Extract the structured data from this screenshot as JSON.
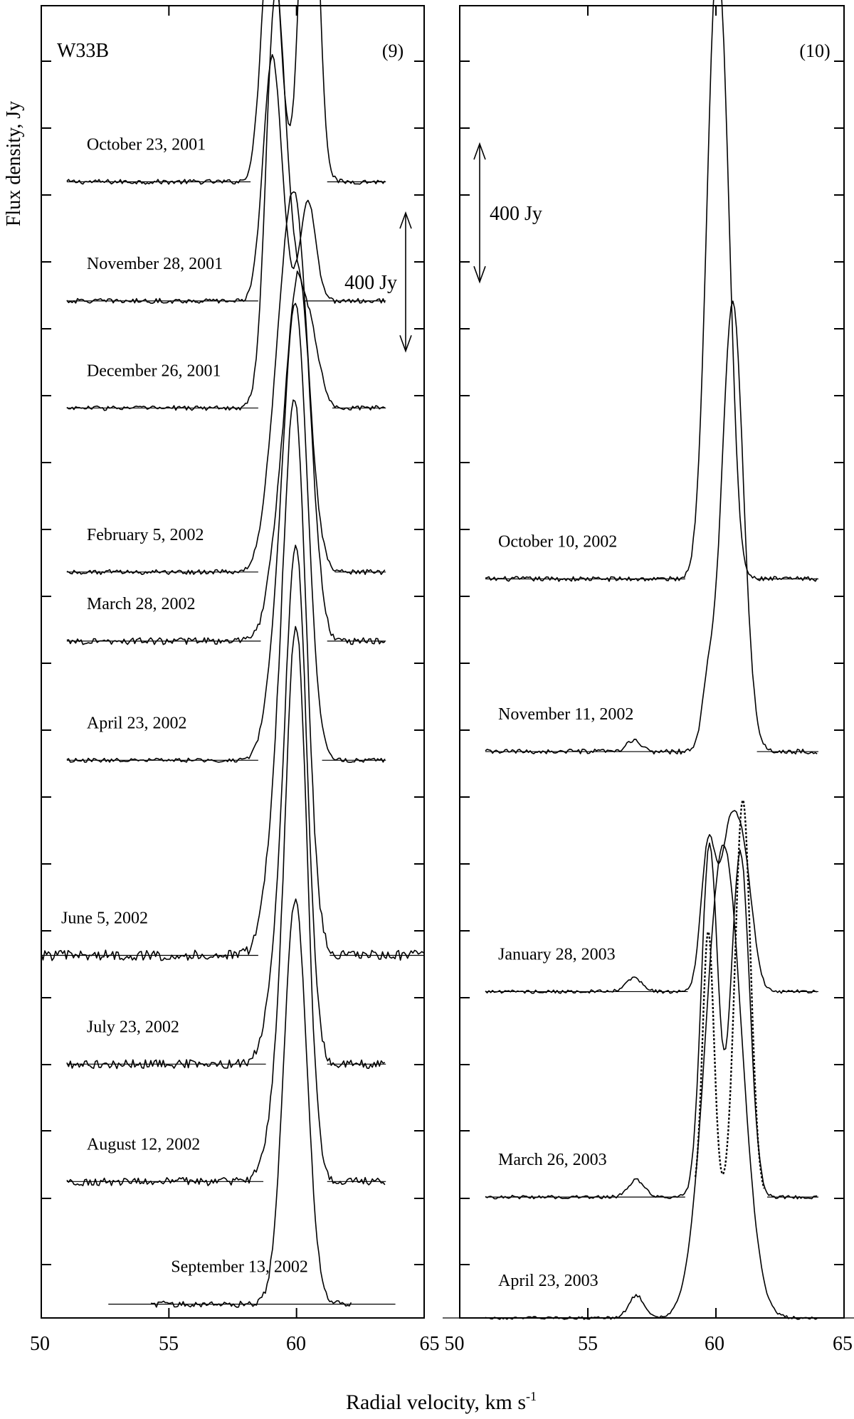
{
  "chart_data": {
    "type": "line",
    "source_name": "W33B",
    "ylabel": "Flux density, Jy",
    "xlabel": "Radial velocity, km s",
    "xlabel_sup": "-1",
    "xlim": [
      50,
      65
    ],
    "xticks": [
      50,
      55,
      60,
      65
    ],
    "x_tick_labels": [
      "50",
      "55",
      "60",
      "65"
    ],
    "x_tick_labels_shared": "65 50",
    "scale_bar_label": "400 Jy",
    "scale_bar_jy": 400,
    "panels": [
      {
        "label": "(9)",
        "flux_range_jy": [
          0,
          3800
        ],
        "scale_bar_y_jy": [
          2800,
          3200
        ],
        "spectra": [
          {
            "date": "October 23, 2001",
            "baseline_jy": 3290,
            "vel_range": [
              51,
              63.5
            ],
            "gap": [
              58.2,
              61.2
            ],
            "noise_jy": 7,
            "peaks": [
              {
                "v": 59.0,
                "a": 790,
                "w": 0.35
              },
              {
                "v": 60.5,
                "a": 1330,
                "w": 0.32
              }
            ]
          },
          {
            "date": "November 28, 2001",
            "baseline_jy": 2945,
            "vel_range": [
              51,
              63.5
            ],
            "gap": [
              58.5,
              60.3
            ],
            "noise_jy": 7,
            "peaks": [
              {
                "v": 59.05,
                "a": 710,
                "w": 0.36
              },
              {
                "v": 60.45,
                "a": 290,
                "w": 0.3
              }
            ]
          },
          {
            "date": "December 26, 2001",
            "baseline_jy": 2635,
            "vel_range": [
              51,
              63.5
            ],
            "gap": [
              58.5,
              61.4
            ],
            "noise_jy": 7,
            "peaks": [
              {
                "v": 59.15,
                "a": 1020,
                "w": 0.36
              },
              {
                "v": 59.8,
                "a": 380,
                "w": 0.55
              },
              {
                "v": 60.6,
                "a": 120,
                "w": 0.35
              }
            ]
          },
          {
            "date": "February 5, 2002",
            "baseline_jy": 2160,
            "vel_range": [
              51,
              63.5
            ],
            "gap": [
              58.5,
              61.5
            ],
            "noise_jy": 7,
            "peaks": [
              {
                "v": 59.2,
                "a": 300,
                "w": 0.45
              },
              {
                "v": 59.95,
                "a": 1020,
                "w": 0.5
              }
            ]
          },
          {
            "date": "March 28, 2002",
            "baseline_jy": 1960,
            "vel_range": [
              51,
              63.5
            ],
            "gap": [
              58.6,
              61.2
            ],
            "noise_jy": 10,
            "peaks": [
              {
                "v": 59.4,
                "a": 320,
                "w": 0.45
              },
              {
                "v": 60.15,
                "a": 980,
                "w": 0.45
              }
            ]
          },
          {
            "date": "April 23, 2002",
            "baseline_jy": 1615,
            "vel_range": [
              51,
              63.5
            ],
            "gap": [
              58.5,
              61.0
            ],
            "noise_jy": 6,
            "peaks": [
              {
                "v": 59.3,
                "a": 300,
                "w": 0.45
              },
              {
                "v": 60.0,
                "a": 1230,
                "w": 0.45
              }
            ]
          },
          {
            "date": "June 5, 2002",
            "baseline_jy": 1050,
            "vel_range": [
              50,
              65
            ],
            "gap": [
              58.5,
              61.3
            ],
            "noise_jy": 15,
            "peaks": [
              {
                "v": 59.2,
                "a": 300,
                "w": 0.45
              },
              {
                "v": 59.95,
                "a": 1530,
                "w": 0.45
              }
            ]
          },
          {
            "date": "July 23, 2002",
            "baseline_jy": 735,
            "vel_range": [
              51,
              63.5
            ],
            "gap": [
              58.8,
              61.2
            ],
            "noise_jy": 13,
            "peaks": [
              {
                "v": 59.3,
                "a": 250,
                "w": 0.45
              },
              {
                "v": 60.0,
                "a": 1430,
                "w": 0.42
              }
            ]
          },
          {
            "date": "August 12, 2002",
            "baseline_jy": 395,
            "vel_range": [
              51,
              63.5
            ],
            "gap": [
              58.7,
              61.2
            ],
            "noise_jy": 12,
            "peaks": [
              {
                "v": 59.3,
                "a": 200,
                "w": 0.45
              },
              {
                "v": 60.0,
                "a": 1550,
                "w": 0.42
              }
            ]
          },
          {
            "date": "September 13, 2002",
            "baseline_jy": 40,
            "vel_range": [
              54.3,
              62.2
            ],
            "gap": null,
            "noise_jy": 9,
            "peaks": [
              {
                "v": 59.95,
                "a": 1170,
                "w": 0.45
              }
            ]
          }
        ]
      },
      {
        "label": "(10)",
        "flux_range_jy": [
          0,
          3800
        ],
        "scale_bar_y_jy": [
          3000,
          3400
        ],
        "spectra": [
          {
            "date": "October 10, 2002",
            "baseline_jy": 2140,
            "vel_range": [
              51,
              64
            ],
            "gap": [
              58.8,
              61.6
            ],
            "noise_jy": 7,
            "peaks": [
              {
                "v": 60.0,
                "a": 1650,
                "w": 0.38
              },
              {
                "v": 60.45,
                "a": 400,
                "w": 0.3
              }
            ]
          },
          {
            "date": "November 11, 2002",
            "baseline_jy": 1640,
            "vel_range": [
              51,
              64
            ],
            "gap": [
              58.8,
              61.6
            ],
            "noise_jy": 7,
            "peaks": [
              {
                "v": 59.7,
                "a": 175,
                "w": 0.25
              },
              {
                "v": 60.65,
                "a": 1300,
                "w": 0.42
              },
              {
                "v": 56.8,
                "a": 35,
                "w": 0.25
              }
            ]
          },
          {
            "date": "January 28, 2003",
            "baseline_jy": 945,
            "vel_range": [
              51,
              64
            ],
            "gap": [
              58.9,
              62.6
            ],
            "noise_jy": 5,
            "peaks": [
              {
                "v": 59.7,
                "a": 420,
                "w": 0.28
              },
              {
                "v": 60.5,
                "a": 410,
                "w": 0.35
              },
              {
                "v": 61.1,
                "a": 340,
                "w": 0.35
              },
              {
                "v": 56.8,
                "a": 40,
                "w": 0.3
              }
            ]
          },
          {
            "date": "March 26, 2003",
            "baseline_jy": 350,
            "vel_range": [
              51,
              64
            ],
            "gap": [
              58.8,
              62.0
            ],
            "noise_jy": 5,
            "peaks": [
              {
                "v": 59.75,
                "a": 1020,
                "w": 0.32
              },
              {
                "v": 60.95,
                "a": 1000,
                "w": 0.36
              },
              {
                "v": 56.9,
                "a": 50,
                "w": 0.3
              }
            ]
          },
          {
            "date": "April 23, 2003",
            "baseline_jy": 0,
            "vel_range": [
              51,
              64
            ],
            "gap": null,
            "noise_jy": 4,
            "peaks": [
              {
                "v": 60.3,
                "a": 1370,
                "w": 0.7
              },
              {
                "v": 56.9,
                "a": 65,
                "w": 0.3
              }
            ]
          }
        ],
        "dotted_spectrum": {
          "baseline_jy": 350,
          "vel_range": [
            59.2,
            61.9
          ],
          "peaks": [
            {
              "v": 59.7,
              "a": 770,
              "w": 0.22
            },
            {
              "v": 61.05,
              "a": 1150,
              "w": 0.3
            }
          ]
        }
      }
    ]
  }
}
